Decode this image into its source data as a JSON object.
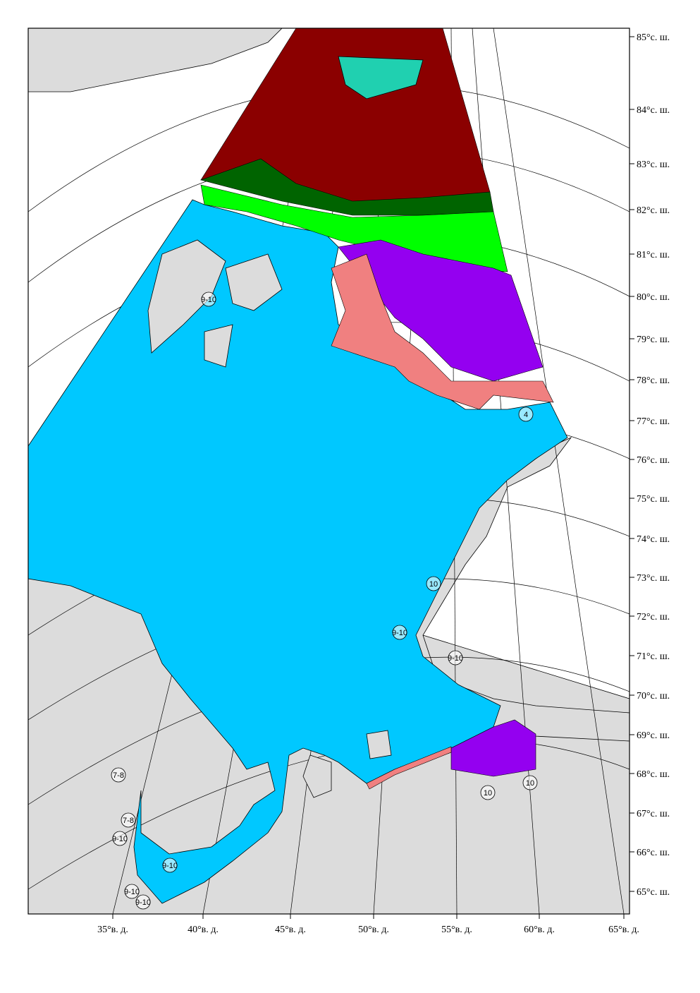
{
  "map": {
    "latitude_labels": [
      "85°с. ш.",
      "84°с. ш.",
      "83°с. ш.",
      "82°с. ш.",
      "81°с. ш.",
      "80°с. ш.",
      "79°с. ш.",
      "78°с. ш.",
      "77°с. ш.",
      "76°с. ш.",
      "75°с. ш.",
      "74°с. ш.",
      "73°с. ш.",
      "72°с. ш.",
      "71°с. ш.",
      "70°с. ш.",
      "69°с. ш.",
      "68°с. ш.",
      "67°с. ш.",
      "66°с. ш.",
      "65°с. ш."
    ],
    "longitude_labels": [
      "35°в. д.",
      "40°в. д.",
      "45°в. д.",
      "50°в. д.",
      "55°в. д.",
      "60°в. д.",
      "65°в. д."
    ],
    "annotations": [
      "10",
      "10",
      "10",
      "4",
      "9-10",
      "9-10",
      "9-10",
      "9-10",
      "9-10",
      "9-10",
      "9-10",
      "7-8",
      "7-8"
    ]
  }
}
